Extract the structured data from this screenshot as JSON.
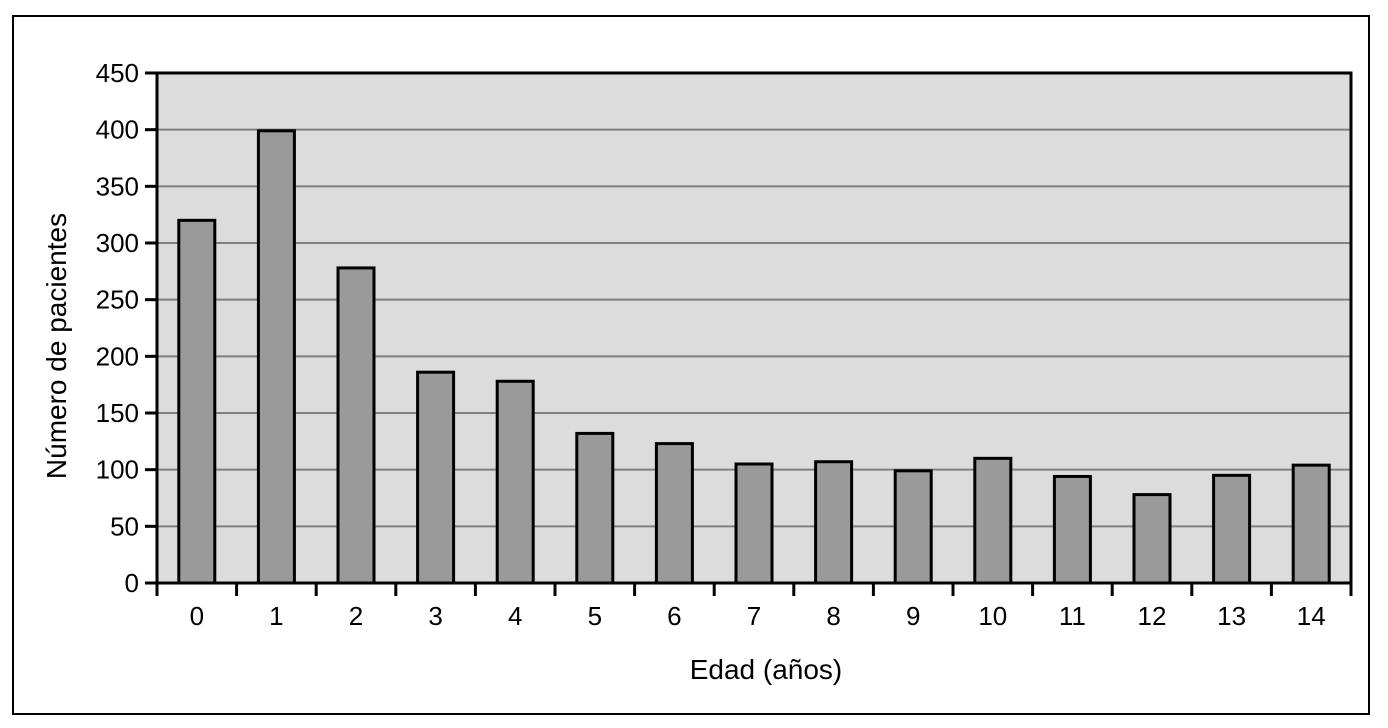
{
  "figure": {
    "background": "#FFFFFF",
    "frame_border": "#000000"
  },
  "chart_data": {
    "type": "bar",
    "title": "",
    "categories": [
      "0",
      "1",
      "2",
      "3",
      "4",
      "5",
      "6",
      "7",
      "8",
      "9",
      "10",
      "11",
      "12",
      "13",
      "14"
    ],
    "values": [
      320,
      399,
      278,
      186,
      178,
      132,
      123,
      105,
      107,
      99,
      110,
      94,
      78,
      95,
      104
    ],
    "xlabel": "Edad (años)",
    "ylabel": "Número de pacientes",
    "ylim": [
      0,
      450
    ],
    "ytick_step": 50,
    "yticks": [
      0,
      50,
      100,
      150,
      200,
      250,
      300,
      350,
      400,
      450
    ],
    "grid": true,
    "legend": "none",
    "colors": {
      "bar_fill": "#9A9A9A",
      "bar_border": "#000000",
      "plot_bg": "#DCDCDC",
      "gridline": "#808080",
      "axis": "#000000",
      "text": "#000000"
    }
  }
}
